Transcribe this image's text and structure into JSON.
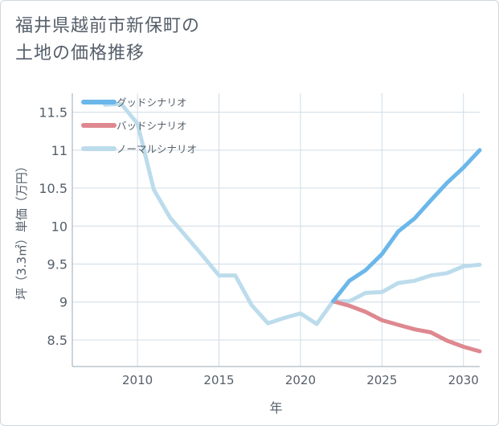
{
  "title_lines": [
    "福井県越前市新保町の",
    "土地の価格推移"
  ],
  "chart_data": {
    "type": "line",
    "title": "福井県越前市新保町の土地の価格推移",
    "xlabel": "年",
    "ylabel": "坪（3.3㎡）単価（万円）",
    "xlim": [
      2006,
      2031
    ],
    "ylim": [
      8.15,
      11.75
    ],
    "x_ticks": [
      2010,
      2015,
      2020,
      2025,
      2030
    ],
    "y_ticks": [
      8.5,
      9,
      9.5,
      10,
      10.5,
      11,
      11.5
    ],
    "x_tick_labels": [
      "2010",
      "2015",
      "2020",
      "2025",
      "2030"
    ],
    "y_tick_labels": [
      "8.5",
      "9",
      "9.5",
      "10",
      "10.5",
      "11",
      "11.5"
    ],
    "grid": true,
    "legend_position": "top-left",
    "series": [
      {
        "name": "グッドシナリオ",
        "color": "#6bb7ea",
        "x": [
          2022,
          2023,
          2024,
          2025,
          2026,
          2027,
          2028,
          2029,
          2030,
          2031
        ],
        "values": [
          9.01,
          9.28,
          9.42,
          9.63,
          9.93,
          10.1,
          10.34,
          10.57,
          10.77,
          11.0
        ]
      },
      {
        "name": "バッドシナリオ",
        "color": "#de8890",
        "x": [
          2022,
          2023,
          2024,
          2025,
          2026,
          2027,
          2028,
          2029,
          2030,
          2031
        ],
        "values": [
          9.01,
          8.95,
          8.87,
          8.76,
          8.7,
          8.64,
          8.6,
          8.49,
          8.41,
          8.35
        ]
      },
      {
        "name": "ノーマルシナリオ",
        "color": "#bcdcec",
        "x": [
          2008,
          2009,
          2010,
          2011,
          2012,
          2013,
          2014,
          2015,
          2016,
          2017,
          2018,
          2019,
          2020,
          2021,
          2022,
          2023,
          2024,
          2025,
          2026,
          2027,
          2028,
          2029,
          2030,
          2031
        ],
        "values": [
          11.6,
          11.61,
          11.35,
          10.48,
          10.11,
          9.86,
          9.61,
          9.35,
          9.35,
          8.96,
          8.72,
          8.79,
          8.85,
          8.71,
          9.01,
          9.01,
          9.12,
          9.13,
          9.25,
          9.28,
          9.35,
          9.38,
          9.47,
          9.49
        ]
      }
    ]
  }
}
